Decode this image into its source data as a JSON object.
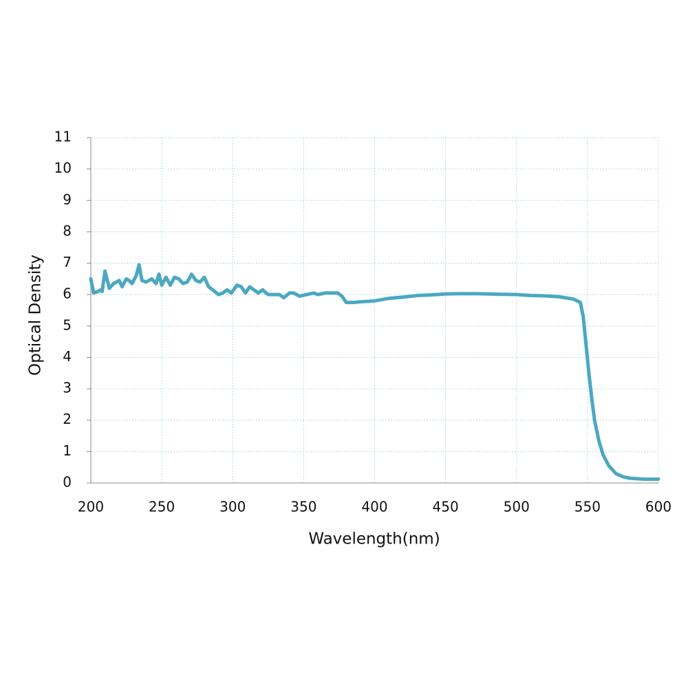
{
  "chart_data": {
    "type": "line",
    "x_label": "Wavelength(nm)",
    "y_label": "Optical Density",
    "x": [
      200,
      202,
      205,
      207,
      208,
      210,
      213,
      216,
      220,
      222,
      225,
      227,
      229,
      232,
      234,
      236,
      239,
      243,
      246,
      248,
      250,
      253,
      256,
      259,
      262,
      265,
      268,
      271,
      274,
      277,
      280,
      283,
      286,
      290,
      293,
      296,
      299,
      303,
      306,
      309,
      312,
      315,
      318,
      321,
      325,
      330,
      333,
      336,
      340,
      343,
      347,
      352,
      357,
      360,
      365,
      370,
      374,
      377,
      380,
      385,
      390,
      400,
      410,
      420,
      430,
      440,
      450,
      460,
      470,
      480,
      490,
      500,
      510,
      520,
      530,
      540,
      545,
      547,
      549,
      551,
      553,
      555,
      558,
      561,
      565,
      570,
      575,
      580,
      590,
      600
    ],
    "series": [
      {
        "color": "#4aa8c2",
        "values": [
          6.5,
          6.05,
          6.1,
          6.15,
          6.1,
          6.75,
          6.2,
          6.35,
          6.45,
          6.25,
          6.5,
          6.45,
          6.35,
          6.6,
          6.95,
          6.45,
          6.4,
          6.5,
          6.35,
          6.65,
          6.3,
          6.55,
          6.3,
          6.55,
          6.5,
          6.35,
          6.4,
          6.65,
          6.45,
          6.4,
          6.55,
          6.25,
          6.15,
          6.0,
          6.05,
          6.15,
          6.05,
          6.3,
          6.25,
          6.05,
          6.25,
          6.15,
          6.05,
          6.15,
          6.0,
          6.0,
          6.0,
          5.9,
          6.05,
          6.05,
          5.95,
          6.0,
          6.05,
          6.0,
          6.05,
          6.05,
          6.05,
          5.95,
          5.75,
          5.75,
          5.77,
          5.8,
          5.88,
          5.92,
          5.97,
          5.99,
          6.02,
          6.03,
          6.03,
          6.02,
          6.01,
          6.0,
          5.97,
          5.96,
          5.93,
          5.86,
          5.75,
          5.3,
          4.4,
          3.5,
          2.7,
          2.0,
          1.35,
          0.9,
          0.55,
          0.3,
          0.2,
          0.15,
          0.12,
          0.12
        ]
      }
    ],
    "xlim": [
      200,
      600
    ],
    "xticks": [
      200,
      250,
      300,
      350,
      400,
      450,
      500,
      550,
      600
    ],
    "ylim": [
      0,
      11
    ],
    "yticks": [
      0,
      1,
      2,
      3,
      4,
      5,
      6,
      7,
      8,
      9,
      10,
      11
    ],
    "grid": true
  }
}
